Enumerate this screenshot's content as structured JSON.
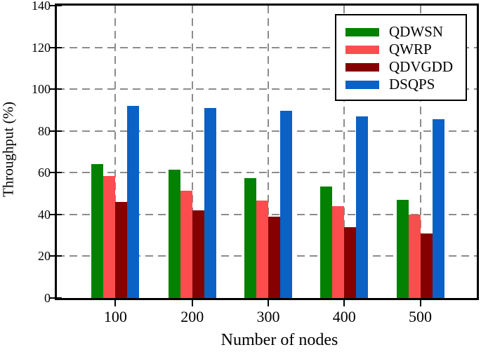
{
  "figure": {
    "background_color": "#ffffff",
    "axis_color": "#000000",
    "grid_color": "#8c8c8c",
    "grid_style": "dashed"
  },
  "chart_data": {
    "type": "bar",
    "title": "",
    "xlabel": "Number of nodes",
    "ylabel": "Throughput (%)",
    "categories": [
      "100",
      "200",
      "300",
      "400",
      "500"
    ],
    "series": [
      {
        "name": "QDWSN",
        "color": "#028102",
        "values": [
          64,
          61.5,
          57.5,
          53.5,
          47
        ]
      },
      {
        "name": "QWRP",
        "color": "#fb4d4d",
        "values": [
          58.5,
          51.5,
          46.5,
          44,
          40
        ]
      },
      {
        "name": "QDVGDD",
        "color": "#850101",
        "values": [
          46,
          42,
          39,
          34,
          31
        ]
      },
      {
        "name": "DSQPS",
        "color": "#0c61c4",
        "values": [
          92,
          91,
          89.5,
          87,
          85.5
        ]
      }
    ],
    "ylim": [
      0,
      140
    ],
    "yticks": [
      0,
      20,
      40,
      60,
      80,
      100,
      120,
      140
    ],
    "grid": "on",
    "legend_position": "upper-right"
  }
}
